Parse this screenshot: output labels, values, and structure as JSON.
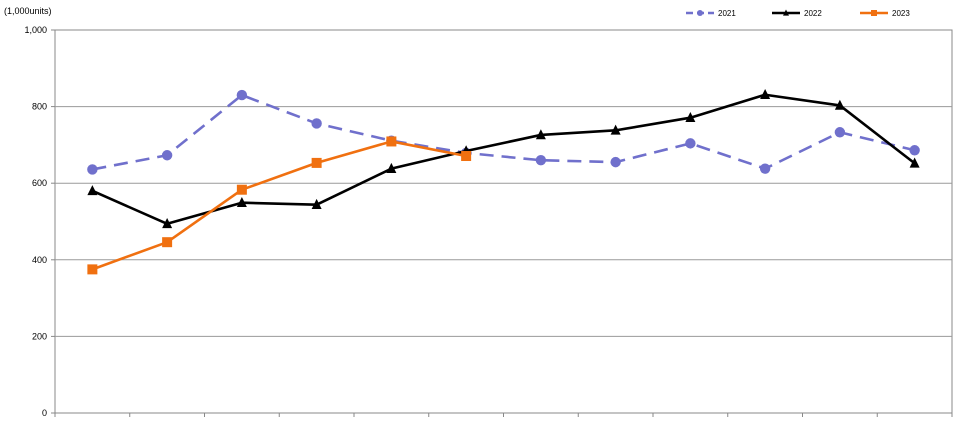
{
  "chart_data": {
    "type": "line",
    "title": "",
    "unit_label": "(1,000units)",
    "xlabel": "",
    "ylabel": "",
    "ylim": [
      0,
      1000
    ],
    "yticks": [
      0,
      200,
      400,
      600,
      800,
      1000
    ],
    "ytick_labels": [
      "0",
      "200",
      "400",
      "600",
      "800",
      "1,000"
    ],
    "x": [
      1,
      2,
      3,
      4,
      5,
      6,
      7,
      8,
      9,
      10,
      11,
      12
    ],
    "grid": "horizontal",
    "legend_position": "top-right",
    "series": [
      {
        "name": "2021",
        "color": "#7070cc",
        "line_style": "dashed",
        "marker": "circle",
        "values": [
          636,
          673,
          830,
          756,
          711,
          679,
          660,
          655,
          704,
          638,
          733,
          686
        ]
      },
      {
        "name": "2022",
        "color": "#000000",
        "line_style": "solid",
        "marker": "triangle",
        "values": [
          580,
          494,
          549,
          544,
          638,
          684,
          726,
          738,
          771,
          831,
          803,
          652
        ]
      },
      {
        "name": "2023",
        "color": "#f07010",
        "line_style": "solid",
        "marker": "square",
        "values": [
          375,
          446,
          583,
          653,
          709,
          671,
          null,
          null,
          null,
          null,
          null,
          null
        ]
      }
    ]
  }
}
